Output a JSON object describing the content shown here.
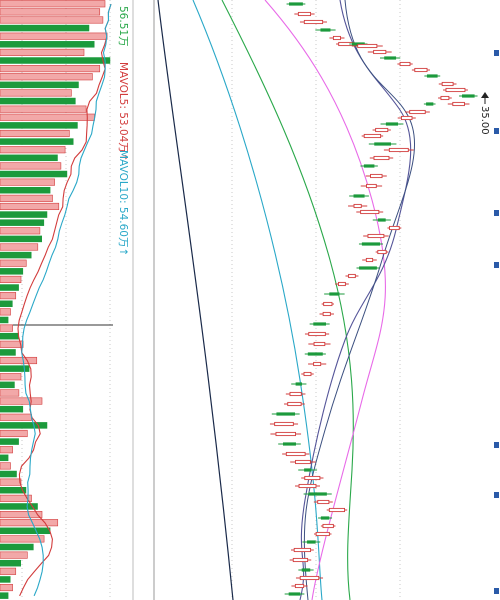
{
  "chart_data": [
    {
      "type": "bar",
      "panel": "volume",
      "legend": [
        {
          "label": "56.51万",
          "color": "#2aa84a"
        },
        {
          "label": "MAVOL5: 53.04万↑",
          "color": "#d23c3c"
        },
        {
          "label": "MAVOL10: 54.60万↑",
          "color": "#2aa8c8"
        }
      ],
      "bars": [
        {
          "v": 1.0,
          "up": true
        },
        {
          "v": 0.95,
          "up": true
        },
        {
          "v": 0.98,
          "up": true
        },
        {
          "v": 0.85,
          "up": false
        },
        {
          "v": 1.02,
          "up": true
        },
        {
          "v": 0.9,
          "up": false
        },
        {
          "v": 0.8,
          "up": true
        },
        {
          "v": 1.05,
          "up": false
        },
        {
          "v": 0.95,
          "up": true
        },
        {
          "v": 0.88,
          "up": true
        },
        {
          "v": 0.75,
          "up": false
        },
        {
          "v": 0.68,
          "up": true
        },
        {
          "v": 0.72,
          "up": false
        },
        {
          "v": 0.82,
          "up": true
        },
        {
          "v": 0.9,
          "up": true
        },
        {
          "v": 0.74,
          "up": false
        },
        {
          "v": 0.66,
          "up": true
        },
        {
          "v": 0.7,
          "up": false
        },
        {
          "v": 0.62,
          "up": true
        },
        {
          "v": 0.55,
          "up": false
        },
        {
          "v": 0.58,
          "up": true
        },
        {
          "v": 0.64,
          "up": false
        },
        {
          "v": 0.52,
          "up": true
        },
        {
          "v": 0.48,
          "up": false
        },
        {
          "v": 0.5,
          "up": true
        },
        {
          "v": 0.56,
          "up": true
        },
        {
          "v": 0.45,
          "up": false
        },
        {
          "v": 0.42,
          "up": false
        },
        {
          "v": 0.38,
          "up": true
        },
        {
          "v": 0.4,
          "up": false
        },
        {
          "v": 0.36,
          "up": true
        },
        {
          "v": 0.3,
          "up": false
        },
        {
          "v": 0.25,
          "up": true
        },
        {
          "v": 0.22,
          "up": false
        },
        {
          "v": 0.2,
          "up": true
        },
        {
          "v": 0.18,
          "up": false
        },
        {
          "v": 0.15,
          "up": true
        },
        {
          "v": 0.12,
          "up": false
        },
        {
          "v": 0.1,
          "up": true
        },
        {
          "v": 0.08,
          "up": false
        },
        {
          "v": 0.12,
          "up": true
        },
        {
          "v": 0.18,
          "up": false
        },
        {
          "v": 0.22,
          "up": true
        },
        {
          "v": 0.15,
          "up": false
        },
        {
          "v": 0.35,
          "up": true
        },
        {
          "v": 0.28,
          "up": false
        },
        {
          "v": 0.2,
          "up": true
        },
        {
          "v": 0.14,
          "up": false
        },
        {
          "v": 0.18,
          "up": true
        },
        {
          "v": 0.4,
          "up": true
        },
        {
          "v": 0.22,
          "up": false
        },
        {
          "v": 0.3,
          "up": true
        },
        {
          "v": 0.45,
          "up": false
        },
        {
          "v": 0.26,
          "up": true
        },
        {
          "v": 0.18,
          "up": false
        },
        {
          "v": 0.12,
          "up": true
        },
        {
          "v": 0.08,
          "up": false
        },
        {
          "v": 0.1,
          "up": true
        },
        {
          "v": 0.16,
          "up": false
        },
        {
          "v": 0.2,
          "up": true
        },
        {
          "v": 0.25,
          "up": false
        },
        {
          "v": 0.3,
          "up": true
        },
        {
          "v": 0.36,
          "up": false
        },
        {
          "v": 0.4,
          "up": true
        },
        {
          "v": 0.55,
          "up": true
        },
        {
          "v": 0.48,
          "up": false
        },
        {
          "v": 0.42,
          "up": true
        },
        {
          "v": 0.32,
          "up": false
        },
        {
          "v": 0.26,
          "up": true
        },
        {
          "v": 0.2,
          "up": false
        },
        {
          "v": 0.15,
          "up": true
        },
        {
          "v": 0.1,
          "up": false
        },
        {
          "v": 0.12,
          "up": true
        },
        {
          "v": 0.08,
          "up": false
        }
      ]
    },
    {
      "type": "candlestick",
      "panel": "price",
      "price_label": "35.00",
      "ma_colors": [
        "#1a2a4a",
        "#2aa8c8",
        "#2aa84a",
        "#e86ae8",
        "#555599"
      ]
    }
  ]
}
